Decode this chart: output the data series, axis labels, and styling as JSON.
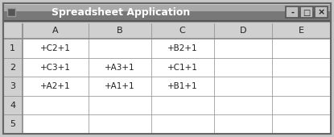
{
  "title": "Spreadsheet Application",
  "col_headers": [
    "A",
    "B",
    "C",
    "D",
    "E"
  ],
  "row_headers": [
    "1",
    "2",
    "3",
    "4",
    "5"
  ],
  "cell_data": [
    [
      "+C2+1",
      "",
      "+B2+1",
      "",
      ""
    ],
    [
      "+C3+1",
      "+A3+1",
      "+C1+1",
      "",
      ""
    ],
    [
      "+A2+1",
      "+A1+1",
      "+B1+1",
      "",
      ""
    ],
    [
      "",
      "",
      "",
      "",
      ""
    ],
    [
      "",
      "",
      "",
      "",
      ""
    ]
  ],
  "fig_bg": "#c8c8c8",
  "outer_border_color": "#888888",
  "title_bar_color": "#888888",
  "title_bar_top_color": "#aaaaaa",
  "title_text_color": "#ffffff",
  "header_bg": "#d0d0d0",
  "cell_bg": "#ffffff",
  "grid_color": "#999999",
  "separator_color": "#555555",
  "btn_bg": "#b0b0b0",
  "btn_border": "#777777",
  "icon_bg": "#666666",
  "figsize": [
    4.15,
    1.7
  ],
  "dpi": 100
}
